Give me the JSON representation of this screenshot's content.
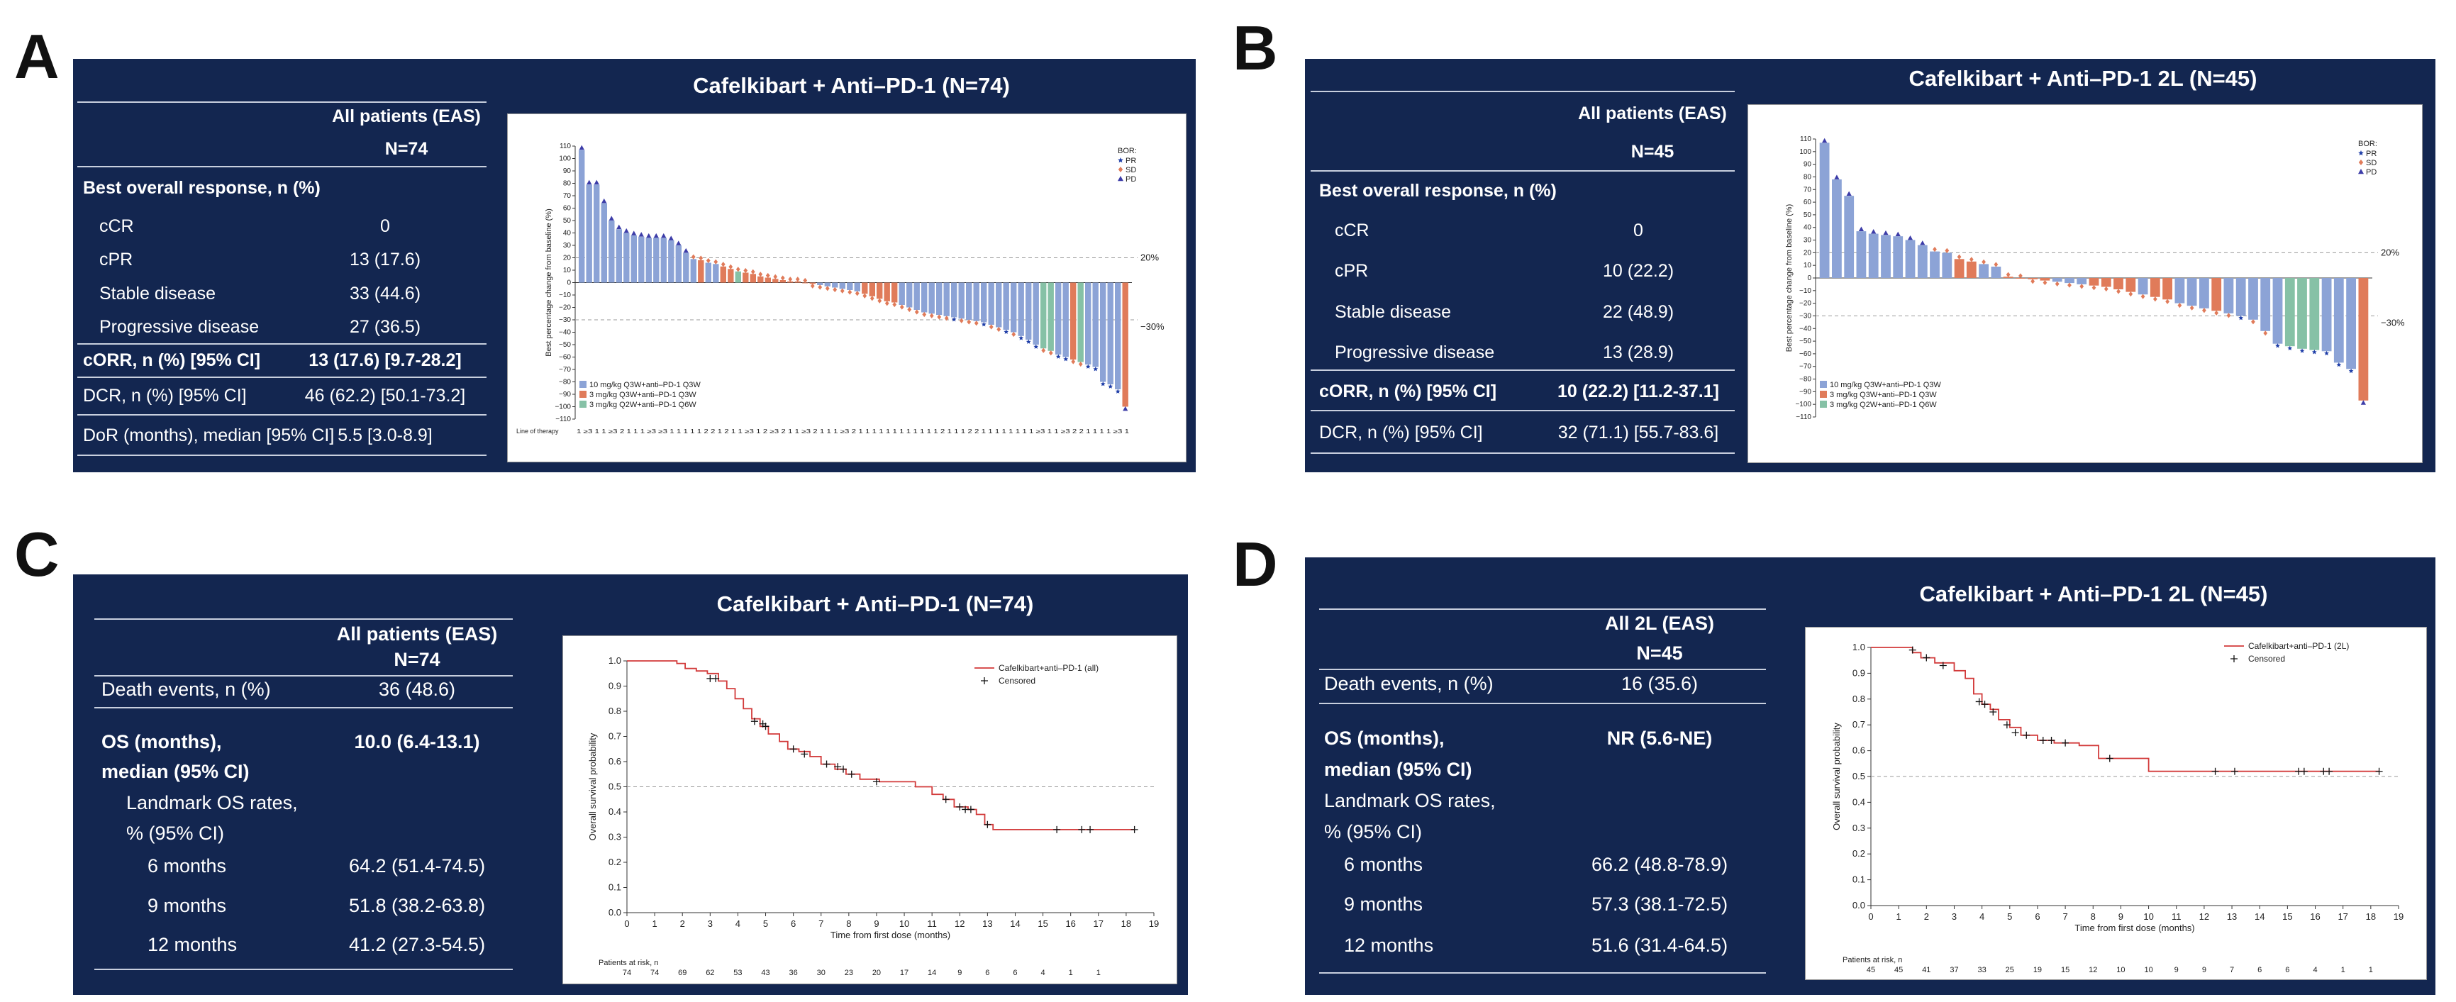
{
  "labels": {
    "a": "A",
    "b": "B",
    "c": "C",
    "d": "D"
  },
  "panelA": {
    "cut_header": "(N=74)",
    "title": "Cafelkibart + Anti–PD-1 (N=74)",
    "col_header": "All patients (EAS)",
    "col_n": "N=74",
    "section": "Best overall response, n (%)",
    "rows": [
      {
        "label": "cCR",
        "value": "0",
        "bold": false,
        "indent": true
      },
      {
        "label": "cPR",
        "value": "13 (17.6)",
        "bold": false,
        "indent": true
      },
      {
        "label": "Stable disease",
        "value": "33 (44.6)",
        "bold": false,
        "indent": true
      },
      {
        "label": "Progressive disease",
        "value": "27 (36.5)",
        "bold": false,
        "indent": true
      },
      {
        "label": "cORR, n (%) [95% CI]",
        "value": "13 (17.6) [9.7-28.2]",
        "bold": true,
        "indent": false
      },
      {
        "label": "DCR, n (%) [95% CI]",
        "value": "46 (62.2) [50.1-73.2]",
        "bold": false,
        "indent": false
      },
      {
        "label": "DoR (months), median [95% CI]",
        "value": "5.5 [3.0-8.9]",
        "bold": false,
        "indent": false
      }
    ]
  },
  "panelB": {
    "title": "Cafelkibart + Anti–PD-1 2L (N=45)",
    "col_header": "All patients (EAS)",
    "col_n": "N=45",
    "section": "Best overall response, n (%)",
    "rows": [
      {
        "label": "cCR",
        "value": "0",
        "bold": false,
        "indent": true
      },
      {
        "label": "cPR",
        "value": "10 (22.2)",
        "bold": false,
        "indent": true
      },
      {
        "label": "Stable disease",
        "value": "22 (48.9)",
        "bold": false,
        "indent": true
      },
      {
        "label": "Progressive disease",
        "value": "13 (28.9)",
        "bold": false,
        "indent": true
      },
      {
        "label": "cORR, n (%) [95% CI]",
        "value": "10 (22.2) [11.2-37.1]",
        "bold": true,
        "indent": false
      },
      {
        "label": "DCR, n (%) [95% CI]",
        "value": "32 (71.1) [55.7-83.6]",
        "bold": false,
        "indent": false
      }
    ]
  },
  "panelC": {
    "title": "Cafelkibart + Anti–PD-1 (N=74)",
    "col_header": "All patients (EAS)",
    "col_n": "N=74",
    "rows": [
      {
        "label": "Death events, n (%)",
        "value": "36 (48.6)",
        "bold": false
      },
      {
        "label": "OS (months),",
        "value": "10.0 (6.4-13.1)",
        "bold": true
      },
      {
        "label": "median (95% CI)",
        "value": "",
        "bold": true
      },
      {
        "label": "Landmark OS rates,",
        "value": "",
        "bold": false
      },
      {
        "label": "% (95% CI)",
        "value": "",
        "bold": false
      },
      {
        "label": "6 months",
        "value": "64.2 (51.4-74.5)",
        "bold": false
      },
      {
        "label": "9 months",
        "value": "51.8 (38.2-63.8)",
        "bold": false
      },
      {
        "label": "12 months",
        "value": "41.2 (27.3-54.5)",
        "bold": false
      }
    ]
  },
  "panelD": {
    "title": "Cafelkibart + Anti–PD-1 2L (N=45)",
    "col_header": "All 2L (EAS)",
    "col_n": "N=45",
    "rows": [
      {
        "label": "Death events, n (%)",
        "value": "16 (35.6)",
        "bold": false
      },
      {
        "label": "OS (months),",
        "value": "NR (5.6-NE)",
        "bold": true
      },
      {
        "label": "median (95% CI)",
        "value": "",
        "bold": true
      },
      {
        "label": "Landmark OS rates,",
        "value": "",
        "bold": false
      },
      {
        "label": "% (95% CI)",
        "value": "",
        "bold": false
      },
      {
        "label": "6 months",
        "value": "66.2 (48.8-78.9)",
        "bold": false
      },
      {
        "label": "9 months",
        "value": "57.3 (38.1-72.5)",
        "bold": false
      },
      {
        "label": "12 months",
        "value": "51.6 (31.4-64.5)",
        "bold": false
      }
    ]
  },
  "colors": {
    "panel": "#132650",
    "blue": "#8ca3d6",
    "orange": "#e07b5a",
    "green": "#86c1a6",
    "pr": "#1f3ea8",
    "sd": "#e07b5a",
    "pd": "#3c3ca8",
    "km": "#d23a3a"
  },
  "chart_data": [
    {
      "id": "waterfallA",
      "type": "bar",
      "ylabel": "Best percentage change from baseline (%)",
      "ylim": [
        -110,
        110
      ],
      "yticks": [
        110,
        100,
        90,
        80,
        70,
        60,
        50,
        40,
        30,
        20,
        10,
        0,
        -10,
        -20,
        -30,
        -40,
        -50,
        -60,
        -70,
        -80,
        -90,
        -100,
        -110
      ],
      "ref_lines": [
        {
          "y": 20,
          "label": "20%"
        },
        {
          "y": -30,
          "label": "−30%"
        }
      ],
      "legend_title": "BOR:",
      "bor_legend": [
        {
          "label": "PR",
          "marker": "star"
        },
        {
          "label": "SD",
          "marker": "diamond"
        },
        {
          "label": "PD",
          "marker": "triangle"
        }
      ],
      "dose_legend": [
        "10 mg/kg Q3W+anti–PD-1 Q3W",
        "3 mg/kg Q3W+anti–PD-1 Q3W",
        "3 mg/kg Q2W+anti–PD-1 Q6W"
      ],
      "line_of_therapy_label": "Line of therapy",
      "line_of_therapy": "1 ≥3 1 1 ≥3 2 1 1 1 ≥3 ≥3 1 1 1 1 1 2 2 1 2 1 1 ≥3 1 2 ≥3 2 1 1 ≥3 2 1 1 1 ≥3 2 1 1 1 1 1 1 1 1 1 1 1 1 2 1 1 1 2 2 1 1 1 1 1 1 1 1 ≥3 1 1 ≥3 2 2 1 1 1 1 ≥3 1",
      "values": [
        107,
        79,
        79,
        64,
        50,
        43,
        40,
        38,
        37,
        36,
        36,
        36,
        34,
        30,
        24,
        19,
        18,
        16,
        15,
        13,
        11,
        9,
        8,
        7,
        5,
        4,
        3,
        2,
        1,
        1,
        0,
        -1,
        -2,
        -3,
        -4,
        -5,
        -6,
        -7,
        -9,
        -11,
        -13,
        -15,
        -16,
        -18,
        -20,
        -22,
        -24,
        -25,
        -26,
        -27,
        -28,
        -29,
        -30,
        -31,
        -32,
        -34,
        -36,
        -38,
        -40,
        -43,
        -46,
        -50,
        -53,
        -55,
        -58,
        -60,
        -62,
        -64,
        -66,
        -68,
        -80,
        -82,
        -86,
        -100
      ],
      "dose": [
        0,
        0,
        0,
        0,
        0,
        0,
        0,
        0,
        0,
        0,
        0,
        0,
        0,
        0,
        0,
        0,
        1,
        0,
        0,
        1,
        1,
        2,
        1,
        1,
        1,
        1,
        1,
        1,
        1,
        1,
        1,
        1,
        0,
        0,
        0,
        0,
        0,
        0,
        1,
        1,
        1,
        1,
        1,
        0,
        0,
        0,
        0,
        0,
        0,
        0,
        0,
        0,
        0,
        0,
        0,
        0,
        0,
        0,
        0,
        0,
        0,
        0,
        2,
        2,
        0,
        0,
        1,
        2,
        0,
        0,
        0,
        0,
        0,
        1
      ],
      "bor": [
        "PD",
        "PD",
        "PD",
        "PD",
        "PD",
        "PD",
        "PD",
        "PD",
        "PD",
        "PD",
        "PD",
        "PD",
        "PD",
        "PD",
        "PD",
        "SD",
        "SD",
        "SD",
        "SD",
        "SD",
        "SD",
        "SD",
        "SD",
        "SD",
        "SD",
        "SD",
        "SD",
        "SD",
        "SD",
        "SD",
        "SD",
        "SD",
        "SD",
        "SD",
        "SD",
        "SD",
        "SD",
        "SD",
        "SD",
        "SD",
        "SD",
        "SD",
        "SD",
        "SD",
        "SD",
        "SD",
        "SD",
        "SD",
        "SD",
        "SD",
        "PR",
        "SD",
        "SD",
        "SD",
        "PR",
        "SD",
        "SD",
        "PR",
        "SD",
        "PR",
        "PR",
        "PR",
        "SD",
        "SD",
        "PR",
        "PR",
        "SD",
        "SD",
        "PR",
        "PR",
        "PR",
        "PR",
        "PR",
        "PD"
      ]
    },
    {
      "id": "waterfallB",
      "type": "bar",
      "ylabel": "Best percentage change from baseline (%)",
      "ylim": [
        -110,
        110
      ],
      "yticks": [
        110,
        100,
        90,
        80,
        70,
        60,
        50,
        40,
        30,
        20,
        10,
        0,
        -10,
        -20,
        -30,
        -40,
        -50,
        -60,
        -70,
        -80,
        -90,
        -100,
        -110
      ],
      "ref_lines": [
        {
          "y": 20,
          "label": "20%"
        },
        {
          "y": -30,
          "label": "−30%"
        }
      ],
      "legend_title": "BOR:",
      "bor_legend": [
        {
          "label": "PR",
          "marker": "star"
        },
        {
          "label": "SD",
          "marker": "diamond"
        },
        {
          "label": "PD",
          "marker": "triangle"
        }
      ],
      "dose_legend": [
        "10 mg/kg Q3W+anti–PD-1 Q3W",
        "3 mg/kg Q3W+anti–PD-1 Q3W",
        "3 mg/kg Q2W+anti–PD-1 Q6W"
      ],
      "values": [
        107,
        78,
        65,
        37,
        35,
        34,
        33,
        30,
        26,
        21,
        20,
        15,
        13,
        11,
        9,
        1,
        0,
        -1,
        -2,
        -3,
        -4,
        -5,
        -6,
        -7,
        -9,
        -11,
        -13,
        -15,
        -17,
        -20,
        -22,
        -24,
        -26,
        -28,
        -30,
        -33,
        -42,
        -52,
        -54,
        -56,
        -57,
        -58,
        -67,
        -72,
        -97
      ],
      "dose": [
        0,
        0,
        0,
        0,
        0,
        0,
        0,
        0,
        0,
        0,
        0,
        1,
        1,
        0,
        0,
        1,
        1,
        1,
        1,
        0,
        0,
        0,
        1,
        1,
        1,
        1,
        0,
        1,
        1,
        0,
        0,
        0,
        1,
        0,
        0,
        0,
        0,
        0,
        2,
        2,
        2,
        0,
        0,
        0,
        1
      ],
      "bor": [
        "PD",
        "PD",
        "PD",
        "PD",
        "PD",
        "PD",
        "PD",
        "PD",
        "PD",
        "SD",
        "SD",
        "SD",
        "SD",
        "SD",
        "SD",
        "SD",
        "SD",
        "SD",
        "SD",
        "SD",
        "SD",
        "SD",
        "SD",
        "SD",
        "SD",
        "SD",
        "SD",
        "SD",
        "SD",
        "SD",
        "SD",
        "SD",
        "SD",
        "SD",
        "PR",
        "SD",
        "SD",
        "PR",
        "PR",
        "PR",
        "PR",
        "PR",
        "PR",
        "PR",
        "PD"
      ]
    },
    {
      "id": "kmC",
      "type": "line",
      "xlabel": "Time from first dose (months)",
      "ylabel": "Overall survival probability",
      "xlim": [
        0,
        19
      ],
      "ylim": [
        0,
        1
      ],
      "xticks": [
        0,
        1,
        2,
        3,
        4,
        5,
        6,
        7,
        8,
        9,
        10,
        11,
        12,
        13,
        14,
        15,
        16,
        17,
        18,
        19
      ],
      "yticks": [
        0,
        0.1,
        0.2,
        0.3,
        0.4,
        0.5,
        0.6,
        0.7,
        0.8,
        0.9,
        1.0
      ],
      "ref_y": 0.5,
      "legend": [
        "Cafelkibart+anti–PD-1 (all)",
        "Censored"
      ],
      "curve": [
        [
          0,
          1
        ],
        [
          1.8,
          1
        ],
        [
          1.8,
          0.99
        ],
        [
          2.1,
          0.97
        ],
        [
          2.5,
          0.96
        ],
        [
          2.9,
          0.95
        ],
        [
          3.3,
          0.92
        ],
        [
          3.6,
          0.89
        ],
        [
          3.9,
          0.85
        ],
        [
          4.2,
          0.81
        ],
        [
          4.5,
          0.77
        ],
        [
          4.8,
          0.74
        ],
        [
          5.1,
          0.71
        ],
        [
          5.5,
          0.68
        ],
        [
          5.8,
          0.65
        ],
        [
          6.2,
          0.64
        ],
        [
          6.6,
          0.62
        ],
        [
          7.0,
          0.59
        ],
        [
          7.5,
          0.57
        ],
        [
          7.9,
          0.55
        ],
        [
          8.4,
          0.53
        ],
        [
          9.1,
          0.52
        ],
        [
          10.0,
          0.52
        ],
        [
          10.4,
          0.5
        ],
        [
          11.0,
          0.47
        ],
        [
          11.4,
          0.45
        ],
        [
          11.8,
          0.42
        ],
        [
          12.3,
          0.41
        ],
        [
          12.6,
          0.39
        ],
        [
          12.9,
          0.35
        ],
        [
          13.2,
          0.33
        ],
        [
          18.3,
          0.33
        ]
      ],
      "censored": [
        [
          3.0,
          0.93
        ],
        [
          3.2,
          0.93
        ],
        [
          4.6,
          0.76
        ],
        [
          4.9,
          0.75
        ],
        [
          5.0,
          0.74
        ],
        [
          6.0,
          0.65
        ],
        [
          6.4,
          0.63
        ],
        [
          7.2,
          0.59
        ],
        [
          7.6,
          0.58
        ],
        [
          7.8,
          0.57
        ],
        [
          8.1,
          0.55
        ],
        [
          9.0,
          0.52
        ],
        [
          11.5,
          0.45
        ],
        [
          12.0,
          0.42
        ],
        [
          12.2,
          0.41
        ],
        [
          12.4,
          0.41
        ],
        [
          13.0,
          0.35
        ],
        [
          15.5,
          0.33
        ],
        [
          16.4,
          0.33
        ],
        [
          16.7,
          0.33
        ],
        [
          18.3,
          0.33
        ]
      ],
      "at_risk_label": "Patients at risk, n",
      "at_risk": [
        "74",
        "74",
        "69",
        "62",
        "53",
        "43",
        "36",
        "30",
        "23",
        "20",
        "17",
        "14",
        "9",
        "6",
        "6",
        "4",
        "1",
        "1"
      ]
    },
    {
      "id": "kmD",
      "type": "line",
      "xlabel": "Time from first dose (months)",
      "ylabel": "Overall survival probability",
      "xlim": [
        0,
        19
      ],
      "ylim": [
        0,
        1
      ],
      "xticks": [
        0,
        1,
        2,
        3,
        4,
        5,
        6,
        7,
        8,
        9,
        10,
        11,
        12,
        13,
        14,
        15,
        16,
        17,
        18,
        19
      ],
      "yticks": [
        0,
        0.1,
        0.2,
        0.3,
        0.4,
        0.5,
        0.6,
        0.7,
        0.8,
        0.9,
        1.0
      ],
      "ref_y": 0.5,
      "legend": [
        "Cafelkibart+anti–PD-1 (2L)",
        "Censored"
      ],
      "curve": [
        [
          0,
          1
        ],
        [
          1.5,
          1
        ],
        [
          1.5,
          0.98
        ],
        [
          1.8,
          0.96
        ],
        [
          2.3,
          0.94
        ],
        [
          3.0,
          0.91
        ],
        [
          3.4,
          0.88
        ],
        [
          3.7,
          0.82
        ],
        [
          4.0,
          0.78
        ],
        [
          4.3,
          0.76
        ],
        [
          4.6,
          0.72
        ],
        [
          5.0,
          0.69
        ],
        [
          5.4,
          0.66
        ],
        [
          6.0,
          0.64
        ],
        [
          6.6,
          0.63
        ],
        [
          7.5,
          0.62
        ],
        [
          8.2,
          0.57
        ],
        [
          10.0,
          0.52
        ],
        [
          18.3,
          0.52
        ]
      ],
      "censored": [
        [
          1.5,
          0.99
        ],
        [
          2.0,
          0.96
        ],
        [
          2.6,
          0.93
        ],
        [
          3.9,
          0.79
        ],
        [
          4.1,
          0.78
        ],
        [
          4.4,
          0.75
        ],
        [
          4.9,
          0.7
        ],
        [
          5.2,
          0.67
        ],
        [
          5.6,
          0.66
        ],
        [
          6.2,
          0.64
        ],
        [
          6.5,
          0.64
        ],
        [
          7.0,
          0.63
        ],
        [
          8.6,
          0.57
        ],
        [
          12.4,
          0.52
        ],
        [
          13.1,
          0.52
        ],
        [
          15.4,
          0.52
        ],
        [
          15.6,
          0.52
        ],
        [
          16.3,
          0.52
        ],
        [
          16.5,
          0.52
        ],
        [
          18.3,
          0.52
        ]
      ],
      "at_risk_label": "Patients at risk, n",
      "at_risk": [
        "45",
        "45",
        "41",
        "37",
        "33",
        "25",
        "19",
        "15",
        "12",
        "10",
        "10",
        "9",
        "9",
        "7",
        "6",
        "6",
        "4",
        "1",
        "1"
      ]
    }
  ]
}
